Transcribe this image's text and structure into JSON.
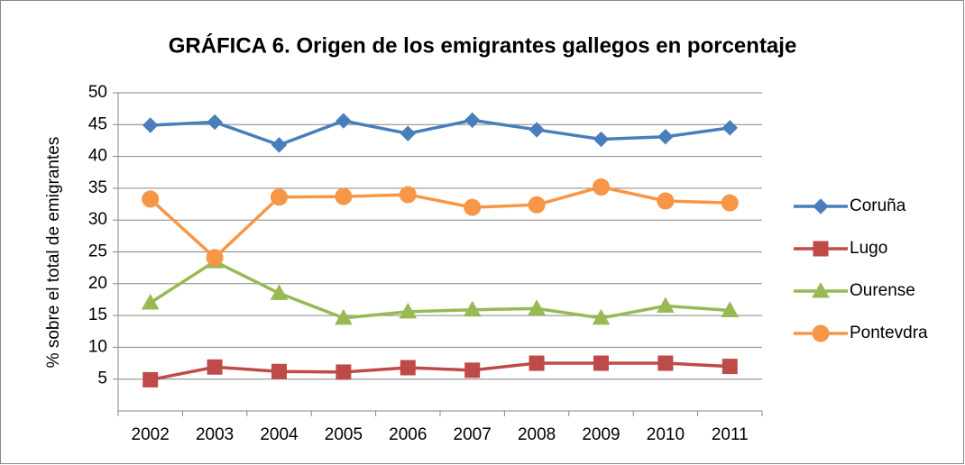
{
  "chart_data": {
    "type": "line",
    "title": "GRÁFICA 6. Origen de los emigrantes gallegos en porcentaje",
    "y_label": "% sobre el total de emigrantes",
    "categories": [
      "2002",
      "2003",
      "2004",
      "2005",
      "2006",
      "2007",
      "2008",
      "2009",
      "2010",
      "2011"
    ],
    "series": [
      {
        "name": "Coruña",
        "color": "#4a7ebb",
        "marker": "diamond",
        "values": [
          44.9,
          45.4,
          41.8,
          45.6,
          43.6,
          45.7,
          44.2,
          42.7,
          43.1,
          44.5
        ]
      },
      {
        "name": "Lugo",
        "color": "#be4b48",
        "marker": "square",
        "values": [
          4.9,
          6.9,
          6.2,
          6.1,
          6.8,
          6.4,
          7.5,
          7.5,
          7.5,
          7.0
        ]
      },
      {
        "name": "Ourense",
        "color": "#98b954",
        "marker": "triangle",
        "values": [
          17.0,
          23.5,
          18.5,
          14.6,
          15.6,
          15.9,
          16.1,
          14.6,
          16.5,
          15.8
        ]
      },
      {
        "name": "Pontevdra",
        "color": "#f79646",
        "marker": "circle",
        "values": [
          33.3,
          24.1,
          33.6,
          33.7,
          34.0,
          32.0,
          32.4,
          35.2,
          33.0,
          32.7
        ]
      }
    ],
    "ylim": [
      0,
      50
    ],
    "yticks": [
      5,
      10,
      15,
      20,
      25,
      30,
      35,
      40,
      45,
      50
    ],
    "grid": true,
    "legend": "right"
  }
}
